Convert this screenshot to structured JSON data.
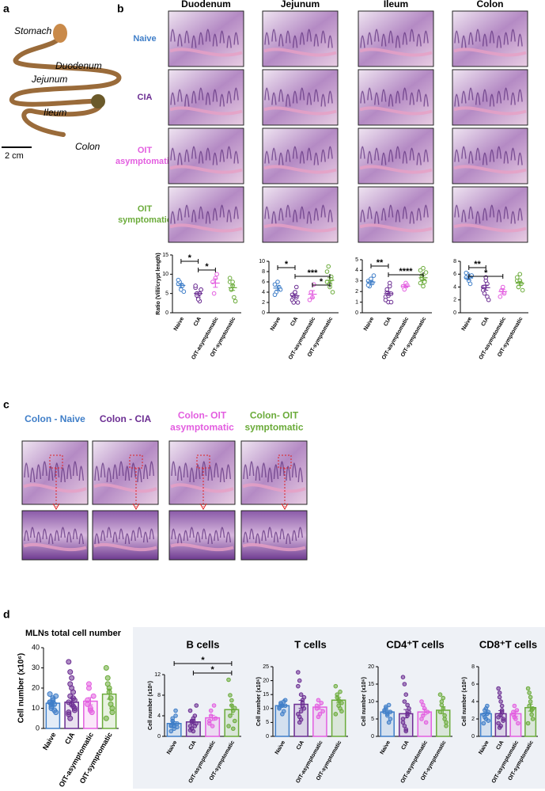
{
  "panel_a": {
    "label": "a",
    "organs": [
      "Stomach",
      "Duodenum",
      "Jejunum",
      "Ileum",
      "Colon"
    ],
    "scale": "2 cm"
  },
  "panel_b": {
    "label": "b",
    "columns": [
      "Duodenum",
      "Jejunum",
      "Ileum",
      "Colon"
    ],
    "rows": [
      {
        "lines": [
          "Naive"
        ],
        "color": "#3f7ec8"
      },
      {
        "lines": [
          "CIA"
        ],
        "color": "#6b2d92"
      },
      {
        "lines": [
          "OIT",
          "asymptomatic"
        ],
        "color": "#e35ee0"
      },
      {
        "lines": [
          "OIT",
          "symptomatic"
        ],
        "color": "#6bab3a"
      }
    ]
  },
  "panel_c": {
    "label": "c",
    "titles": [
      {
        "lines": [
          "Colon - Naive"
        ],
        "color": "#3f7ec8"
      },
      {
        "lines": [
          "Colon - CIA"
        ],
        "color": "#6b2d92"
      },
      {
        "lines": [
          "Colon- OIT",
          "asymptomatic"
        ],
        "color": "#e35ee0"
      },
      {
        "lines": [
          "Colon- OIT",
          "symptomatic"
        ],
        "color": "#6bab3a"
      }
    ]
  },
  "panel_d": {
    "label": "d"
  },
  "chart_data": [
    {
      "type": "dot",
      "ylabel": "Ratio (Villi/crypt length)",
      "categories": [
        "Naive",
        "CIA",
        "OIT-asymptomatic",
        "OIT-symptomatic"
      ],
      "colors": [
        "#3f7ec8",
        "#6b2d92",
        "#e35ee0",
        "#6bab3a"
      ],
      "ylim": [
        0,
        15
      ],
      "yticks": [
        0,
        5,
        10,
        15
      ],
      "points": [
        [
          7.5,
          8,
          6,
          7,
          5.5,
          8.5
        ],
        [
          6.5,
          5,
          4,
          3,
          6,
          7,
          4.5,
          3.5,
          5,
          6
        ],
        [
          8,
          5,
          9,
          10
        ],
        [
          8,
          6,
          7,
          4,
          3,
          9,
          6,
          8
        ]
      ],
      "means": [
        7.1,
        5,
        7.7,
        6.5
      ],
      "errors": [
        0.5,
        0.4,
        1.1,
        0.7
      ],
      "significance": [
        {
          "between": [
            "Naive",
            "CIA"
          ],
          "label": "*"
        },
        {
          "between": [
            "CIA",
            "OIT-asymptomatic"
          ],
          "label": "*"
        }
      ]
    },
    {
      "type": "dot",
      "categories": [
        "Naive",
        "CIA",
        "OIT-asymptomatic",
        "OIT-symptomatic"
      ],
      "colors": [
        "#3f7ec8",
        "#6b2d92",
        "#e35ee0",
        "#6bab3a"
      ],
      "ylim": [
        0,
        10
      ],
      "yticks": [
        0,
        2,
        4,
        6,
        8,
        10
      ],
      "points": [
        [
          5.5,
          4,
          6,
          5,
          4.5,
          3.5
        ],
        [
          2.5,
          3,
          4,
          5,
          2,
          3.5,
          2,
          4,
          3
        ],
        [
          2.5,
          4,
          3,
          5.5
        ],
        [
          8,
          6,
          5.5,
          7,
          4,
          6,
          9,
          5,
          6.5
        ]
      ],
      "means": [
        4.8,
        3.3,
        3.6,
        6.3
      ],
      "errors": [
        0.4,
        0.3,
        0.7,
        0.5
      ],
      "significance": [
        {
          "between": [
            "Naive",
            "CIA"
          ],
          "label": "*"
        },
        {
          "between": [
            "CIA",
            "OIT-symptomatic"
          ],
          "label": "***"
        },
        {
          "between": [
            "OIT-asymptomatic",
            "OIT-symptomatic"
          ],
          "label": "*"
        }
      ]
    },
    {
      "type": "dot",
      "categories": [
        "Naive",
        "CIA",
        "OIT-asymptomatic",
        "OIT-symptomatic"
      ],
      "colors": [
        "#3f7ec8",
        "#6b2d92",
        "#e35ee0",
        "#6bab3a"
      ],
      "ylim": [
        0,
        5
      ],
      "yticks": [
        0,
        1,
        2,
        3,
        4,
        5
      ],
      "points": [
        [
          3,
          2.5,
          3.2,
          2.8,
          3.5,
          2.6
        ],
        [
          1.5,
          2,
          1,
          2.5,
          1.8,
          1.2,
          2.2,
          1.6,
          2.8,
          1
        ],
        [
          2.5,
          2.2,
          2.8,
          2.6
        ],
        [
          4,
          3.5,
          2.5,
          3,
          3.8,
          2.8,
          3.2,
          4.2,
          2.9
        ]
      ],
      "means": [
        2.9,
        1.8,
        2.5,
        3.3
      ],
      "errors": [
        0.15,
        0.18,
        0.12,
        0.2
      ],
      "significance": [
        {
          "between": [
            "Naive",
            "CIA"
          ],
          "label": "**"
        },
        {
          "between": [
            "CIA",
            "OIT-symptomatic"
          ],
          "label": "****"
        }
      ]
    },
    {
      "type": "dot",
      "categories": [
        "Naive",
        "CIA",
        "OIT-asymptomatic",
        "OIT-symptomatic"
      ],
      "colors": [
        "#3f7ec8",
        "#6b2d92",
        "#e35ee0",
        "#6bab3a"
      ],
      "ylim": [
        0,
        8
      ],
      "yticks": [
        0,
        2,
        4,
        6,
        8
      ],
      "points": [
        [
          5.5,
          6,
          5,
          4.5,
          5.8,
          6.2
        ],
        [
          4,
          3,
          5,
          4.5,
          2,
          3.5,
          4,
          5.5,
          2.5
        ],
        [
          2.5,
          3.5,
          4,
          3
        ],
        [
          5,
          4,
          6,
          4.5,
          3.5,
          5.5,
          4,
          5
        ]
      ],
      "means": [
        5.4,
        3.9,
        3.3,
        4.6
      ],
      "errors": [
        0.3,
        0.4,
        0.35,
        0.3
      ],
      "significance": [
        {
          "between": [
            "Naive",
            "CIA"
          ],
          "label": "**"
        },
        {
          "between": [
            "Naive",
            "OIT-asymptomatic"
          ],
          "label": "*"
        }
      ]
    },
    {
      "type": "bar_dot",
      "title": "MLNs total cell number",
      "ylabel": "Cell number (x10⁶)",
      "categories": [
        "Naive",
        "CIA",
        "OIT-asymptomatic",
        "OIT-symptomatic"
      ],
      "colors": [
        "#3f7ec8",
        "#6b2d92",
        "#e35ee0",
        "#6bab3a"
      ],
      "ylim": [
        0,
        40
      ],
      "yticks": [
        0,
        10,
        20,
        30,
        40
      ],
      "points": [
        [
          13,
          10,
          15,
          12,
          8,
          17,
          11,
          14,
          9,
          16,
          13,
          12
        ],
        [
          33,
          28,
          20,
          15,
          10,
          8,
          5,
          12,
          18,
          14,
          7,
          22,
          25,
          11,
          9,
          13,
          16
        ],
        [
          14,
          20,
          10,
          8,
          16,
          12,
          22,
          9
        ],
        [
          30,
          25,
          20,
          15,
          10,
          5,
          22,
          18,
          12,
          8
        ]
      ],
      "means": [
        12.5,
        13,
        13.5,
        17
      ],
      "errors": [
        1,
        2,
        1.8,
        2.5
      ]
    },
    {
      "type": "bar_dot",
      "title": "B cells",
      "ylabel": "Cell number (x10⁶)",
      "categories": [
        "Naive",
        "CIA",
        "OIT-asymptomatic",
        "OIT-symptomatic"
      ],
      "colors": [
        "#3f7ec8",
        "#6b2d92",
        "#e35ee0",
        "#6bab3a"
      ],
      "ylim": [
        0,
        12
      ],
      "yticks": [
        0,
        4,
        8,
        12
      ],
      "points": [
        [
          2,
          3,
          1.5,
          4,
          2.5,
          1,
          3.5,
          2,
          5,
          1.8,
          2.2,
          3
        ],
        [
          2,
          3,
          1,
          4,
          2.5,
          5,
          1.5,
          3.5,
          2,
          6,
          1.2,
          2.8,
          3
        ],
        [
          3,
          4,
          2,
          6,
          3.5,
          2.5,
          5
        ],
        [
          11,
          8,
          6,
          5,
          3,
          2,
          4,
          7,
          1.5,
          5.5
        ]
      ],
      "means": [
        2.5,
        2.8,
        3.6,
        5.2
      ],
      "errors": [
        0.35,
        0.4,
        0.5,
        0.9
      ],
      "significance": [
        {
          "between": [
            "Naive",
            "OIT-symptomatic"
          ],
          "label": "*"
        },
        {
          "between": [
            "CIA",
            "OIT-symptomatic"
          ],
          "label": "*"
        }
      ]
    },
    {
      "type": "bar_dot",
      "title": "T cells",
      "ylabel": "Cell number (x10⁶)",
      "categories": [
        "Naive",
        "CIA",
        "OIT-asymptomatic",
        "OIT-symptomatic"
      ],
      "colors": [
        "#3f7ec8",
        "#6b2d92",
        "#e35ee0",
        "#6bab3a"
      ],
      "ylim": [
        0,
        25
      ],
      "yticks": [
        0,
        5,
        10,
        15,
        20,
        25
      ],
      "points": [
        [
          10,
          12,
          11,
          9,
          13,
          10.5,
          11.5,
          8,
          12.5,
          11
        ],
        [
          23,
          20,
          15,
          12,
          10,
          8,
          5,
          9,
          11,
          14,
          18,
          7,
          6,
          13
        ],
        [
          10,
          13,
          8,
          12,
          9,
          11,
          7
        ],
        [
          18,
          15,
          13,
          10,
          12,
          8,
          14,
          11,
          16,
          9
        ]
      ],
      "means": [
        11,
        11.5,
        10.5,
        13
      ],
      "errors": [
        0.5,
        1.4,
        0.8,
        1
      ]
    },
    {
      "type": "bar_dot",
      "title": "CD4⁺T cells",
      "ylabel": "Cell number (x10⁶)",
      "categories": [
        "Naive",
        "CIA",
        "OIT-asymptomatic",
        "OIT-symptomatic"
      ],
      "colors": [
        "#3f7ec8",
        "#6b2d92",
        "#e35ee0",
        "#6bab3a"
      ],
      "ylim": [
        0,
        20
      ],
      "yticks": [
        0,
        5,
        10,
        15,
        20
      ],
      "points": [
        [
          7,
          8,
          6,
          9,
          5,
          7.5,
          8.5,
          6.5,
          4,
          7
        ],
        [
          17,
          15,
          12,
          9,
          7,
          5,
          3,
          2,
          6,
          8,
          4,
          10,
          1.5,
          6.5
        ],
        [
          10,
          6,
          8,
          4,
          7,
          5,
          9
        ],
        [
          12,
          10,
          8,
          5,
          3,
          7,
          9,
          11,
          6,
          4
        ]
      ],
      "means": [
        7,
        6.5,
        7,
        7.5
      ],
      "errors": [
        0.5,
        1.2,
        0.8,
        1
      ]
    },
    {
      "type": "bar_dot",
      "title": "CD8⁺T cells",
      "ylabel": "Cell number (x10⁶)",
      "categories": [
        "Naive",
        "CIA",
        "OIT-asymptomatic",
        "OIT-symptomatic"
      ],
      "colors": [
        "#3f7ec8",
        "#6b2d92",
        "#e35ee0",
        "#6bab3a"
      ],
      "ylim": [
        0,
        8
      ],
      "yticks": [
        0,
        2,
        4,
        6,
        8
      ],
      "points": [
        [
          2.5,
          3,
          2,
          3.5,
          2.8,
          1.5,
          2.2,
          3.2,
          2.6,
          1.8
        ],
        [
          5.5,
          5,
          4,
          3.5,
          2,
          1.5,
          1,
          2.5,
          3,
          1.8,
          2.2,
          4.5,
          1.2,
          2.8
        ],
        [
          2.5,
          3.5,
          2,
          3,
          1.5,
          2.8,
          2.2
        ],
        [
          5.5,
          5,
          4.5,
          3,
          2,
          1.5,
          3.5,
          4,
          2.5,
          3.2
        ]
      ],
      "means": [
        2.6,
        2.6,
        2.6,
        3.3
      ],
      "errors": [
        0.2,
        0.35,
        0.3,
        0.4
      ]
    }
  ]
}
